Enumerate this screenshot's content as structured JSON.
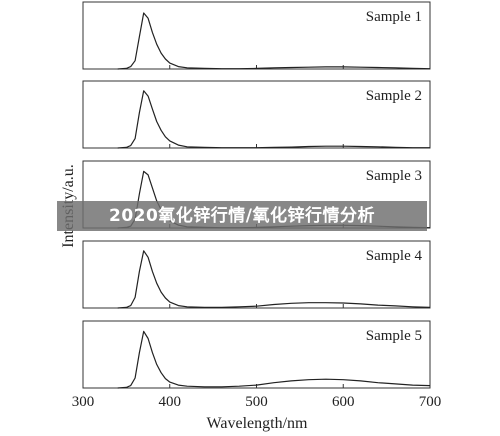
{
  "chart_data": {
    "type": "line",
    "xlabel": "Wavelength/nm",
    "ylabel": "Intensity/a.u.",
    "xlim": [
      300,
      700
    ],
    "x_ticks": [
      300,
      400,
      500,
      600,
      700
    ],
    "y_ticks": [],
    "grid": false,
    "layout": "stacked panels",
    "series": [
      {
        "name": "Sample 1",
        "x": [
          340,
          350,
          355,
          360,
          365,
          370,
          375,
          380,
          385,
          390,
          395,
          400,
          410,
          420,
          440,
          460,
          480,
          500,
          520,
          540,
          560,
          580,
          600,
          620,
          640,
          660,
          680,
          700
        ],
        "y": [
          0,
          1,
          4,
          14,
          55,
          95,
          86,
          62,
          42,
          27,
          17,
          10,
          4,
          2,
          1,
          0.5,
          0.5,
          1,
          2,
          2.5,
          3,
          3.5,
          3.5,
          3,
          2.5,
          2,
          1,
          0.5
        ]
      },
      {
        "name": "Sample 2",
        "x": [
          340,
          350,
          355,
          360,
          365,
          370,
          375,
          380,
          385,
          390,
          395,
          400,
          410,
          420,
          440,
          460,
          480,
          500,
          520,
          540,
          560,
          580,
          600,
          620,
          640,
          660,
          680,
          700
        ],
        "y": [
          0,
          1,
          4,
          16,
          60,
          97,
          88,
          66,
          45,
          30,
          19,
          12,
          5,
          2,
          1,
          0.5,
          0.5,
          0.5,
          1,
          1.5,
          2.5,
          3,
          3,
          2.5,
          2,
          1,
          0.5,
          0.5
        ]
      },
      {
        "name": "Sample 3",
        "x": [
          340,
          350,
          355,
          360,
          365,
          370,
          375,
          380,
          385,
          390,
          395,
          400,
          410,
          420,
          440,
          460,
          480,
          500,
          520,
          540,
          560,
          580,
          600,
          620,
          640,
          660,
          680,
          700
        ],
        "y": [
          0,
          1,
          3,
          15,
          58,
          96,
          90,
          68,
          46,
          31,
          20,
          12,
          5,
          2,
          1,
          0.5,
          0.5,
          1,
          2,
          3,
          4,
          4.5,
          4.5,
          4,
          3,
          2,
          1,
          0.5
        ]
      },
      {
        "name": "Sample 4",
        "x": [
          340,
          350,
          355,
          360,
          365,
          370,
          375,
          380,
          385,
          390,
          395,
          400,
          410,
          420,
          440,
          460,
          480,
          500,
          520,
          540,
          560,
          580,
          600,
          620,
          640,
          660,
          680,
          700
        ],
        "y": [
          0,
          1,
          4,
          18,
          62,
          97,
          86,
          62,
          42,
          27,
          17,
          10,
          4,
          2,
          1,
          1,
          2,
          3,
          6,
          8,
          9,
          9,
          8.5,
          7,
          5,
          3.5,
          2,
          1
        ]
      },
      {
        "name": "Sample 5",
        "x": [
          340,
          350,
          355,
          360,
          365,
          370,
          375,
          380,
          385,
          390,
          395,
          400,
          410,
          420,
          440,
          460,
          480,
          500,
          520,
          540,
          560,
          580,
          600,
          620,
          640,
          660,
          680,
          700
        ],
        "y": [
          0,
          1,
          4,
          17,
          60,
          96,
          84,
          60,
          40,
          26,
          16,
          10,
          5,
          3,
          2,
          2,
          3,
          5,
          9,
          12,
          14,
          15,
          14,
          12,
          9,
          7,
          5,
          4
        ]
      }
    ]
  },
  "overlay": {
    "banner_text": "2020氧化锌行情/氧化锌行情分析"
  }
}
